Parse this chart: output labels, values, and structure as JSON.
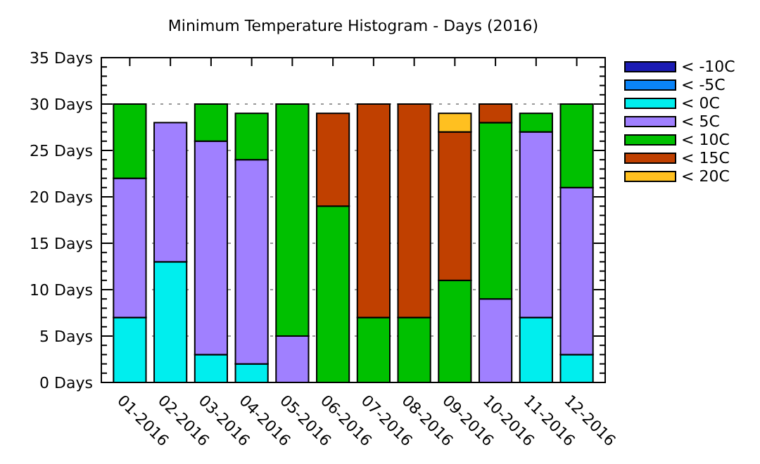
{
  "chart_data": {
    "type": "bar",
    "title": "Minimum Temperature Histogram - Days (2016)",
    "stacked": true,
    "legend": "right",
    "grid": "y",
    "categories": [
      "01-2016",
      "02-2016",
      "03-2016",
      "04-2016",
      "05-2016",
      "06-2016",
      "07-2016",
      "08-2016",
      "09-2016",
      "10-2016",
      "11-2016",
      "12-2016"
    ],
    "ylim": [
      0,
      35
    ],
    "yticks": [
      {
        "value": 0,
        "label": "0 Days"
      },
      {
        "value": 5,
        "label": "5 Days"
      },
      {
        "value": 10,
        "label": "10 Days"
      },
      {
        "value": 15,
        "label": "15 Days"
      },
      {
        "value": 20,
        "label": "20 Days"
      },
      {
        "value": 25,
        "label": "25 Days"
      },
      {
        "value": 30,
        "label": "30 Days"
      },
      {
        "value": 35,
        "label": "35 Days"
      }
    ],
    "series": [
      {
        "name": "< -10C",
        "color": "#1c1cb4",
        "values": [
          0,
          0,
          0,
          0,
          0,
          0,
          0,
          0,
          0,
          0,
          0,
          0
        ]
      },
      {
        "name": "< -5C",
        "color": "#0a84f8",
        "values": [
          0,
          0,
          0,
          0,
          0,
          0,
          0,
          0,
          0,
          0,
          0,
          0
        ]
      },
      {
        "name": "< 0C",
        "color": "#00eeee",
        "values": [
          7,
          13,
          3,
          2,
          0,
          0,
          0,
          0,
          0,
          0,
          7,
          3
        ]
      },
      {
        "name": "< 5C",
        "color": "#a080ff",
        "values": [
          15,
          15,
          23,
          22,
          5,
          0,
          0,
          0,
          0,
          9,
          20,
          18
        ]
      },
      {
        "name": "< 10C",
        "color": "#00c000",
        "values": [
          8,
          0,
          4,
          5,
          25,
          19,
          7,
          7,
          11,
          19,
          2,
          9
        ]
      },
      {
        "name": "< 15C",
        "color": "#c04000",
        "values": [
          0,
          0,
          0,
          0,
          0,
          10,
          23,
          23,
          16,
          2,
          0,
          0
        ]
      },
      {
        "name": "< 20C",
        "color": "#ffc020",
        "values": [
          0,
          0,
          0,
          0,
          0,
          0,
          0,
          0,
          2,
          0,
          0,
          0
        ]
      }
    ]
  }
}
